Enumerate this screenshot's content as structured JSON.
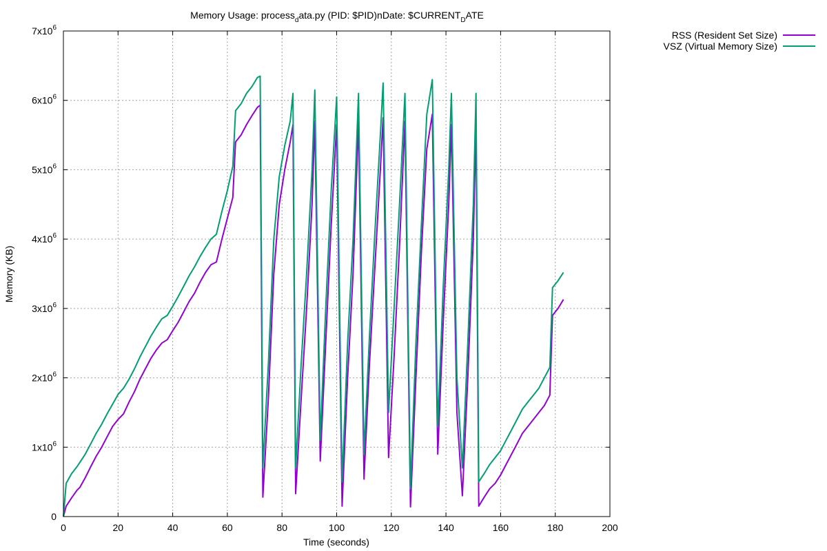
{
  "chart_data": {
    "type": "line",
    "title_parts": {
      "a": "Memory Usage: process",
      "sub1": "d",
      "b": "ata.py (PID: $PID)nDate: $CURRENT",
      "sub2": "D",
      "c": "ATE"
    },
    "xlabel": "Time (seconds)",
    "ylabel": "Memory (KB)",
    "xlim": [
      0,
      200
    ],
    "ylim": [
      0,
      7000000
    ],
    "grid": true,
    "legend_position": "outside top-right",
    "x_ticks": [
      {
        "value": 0,
        "label": "0"
      },
      {
        "value": 20,
        "label": "20"
      },
      {
        "value": 40,
        "label": "40"
      },
      {
        "value": 60,
        "label": "60"
      },
      {
        "value": 80,
        "label": "80"
      },
      {
        "value": 100,
        "label": "100"
      },
      {
        "value": 120,
        "label": "120"
      },
      {
        "value": 140,
        "label": "140"
      },
      {
        "value": 160,
        "label": "160"
      },
      {
        "value": 180,
        "label": "180"
      },
      {
        "value": 200,
        "label": "200"
      }
    ],
    "y_ticks": [
      {
        "value": 0,
        "label": "0",
        "exp": ""
      },
      {
        "value": 1000000,
        "label": "1x10",
        "exp": "6"
      },
      {
        "value": 2000000,
        "label": "2x10",
        "exp": "6"
      },
      {
        "value": 3000000,
        "label": "3x10",
        "exp": "6"
      },
      {
        "value": 4000000,
        "label": "4x10",
        "exp": "6"
      },
      {
        "value": 5000000,
        "label": "5x10",
        "exp": "6"
      },
      {
        "value": 6000000,
        "label": "6x10",
        "exp": "6"
      },
      {
        "value": 7000000,
        "label": "7x10",
        "exp": "6"
      }
    ],
    "series": [
      {
        "name": "RSS (Resident Set Size)",
        "color": "#9400d3",
        "points": [
          [
            0,
            0
          ],
          [
            1,
            150000
          ],
          [
            3,
            270000
          ],
          [
            5,
            380000
          ],
          [
            6,
            420000
          ],
          [
            8,
            560000
          ],
          [
            10,
            720000
          ],
          [
            12,
            870000
          ],
          [
            14,
            1000000
          ],
          [
            16,
            1150000
          ],
          [
            18,
            1300000
          ],
          [
            20,
            1400000
          ],
          [
            22,
            1480000
          ],
          [
            24,
            1650000
          ],
          [
            26,
            1800000
          ],
          [
            28,
            1980000
          ],
          [
            30,
            2130000
          ],
          [
            32,
            2280000
          ],
          [
            34,
            2400000
          ],
          [
            36,
            2500000
          ],
          [
            38,
            2550000
          ],
          [
            40,
            2680000
          ],
          [
            42,
            2800000
          ],
          [
            44,
            2950000
          ],
          [
            46,
            3100000
          ],
          [
            48,
            3220000
          ],
          [
            50,
            3380000
          ],
          [
            52,
            3520000
          ],
          [
            54,
            3630000
          ],
          [
            56,
            3670000
          ],
          [
            58,
            4000000
          ],
          [
            60,
            4300000
          ],
          [
            62,
            4600000
          ],
          [
            63,
            5400000
          ],
          [
            65,
            5500000
          ],
          [
            67,
            5650000
          ],
          [
            69,
            5780000
          ],
          [
            71,
            5900000
          ],
          [
            72,
            5930000
          ],
          [
            73,
            280000
          ],
          [
            75,
            1700000
          ],
          [
            77,
            3500000
          ],
          [
            79,
            4500000
          ],
          [
            81,
            5000000
          ],
          [
            83,
            5400000
          ],
          [
            84,
            5650000
          ],
          [
            85,
            330000
          ],
          [
            87,
            1700000
          ],
          [
            89,
            3000000
          ],
          [
            91,
            4500000
          ],
          [
            92,
            5700000
          ],
          [
            94,
            800000
          ],
          [
            96,
            2500000
          ],
          [
            98,
            4200000
          ],
          [
            100,
            5650000
          ],
          [
            102,
            150000
          ],
          [
            104,
            2000000
          ],
          [
            106,
            3500000
          ],
          [
            108,
            5700000
          ],
          [
            110,
            540000
          ],
          [
            112,
            2200000
          ],
          [
            114,
            3600000
          ],
          [
            116,
            5000000
          ],
          [
            117,
            5750000
          ],
          [
            119,
            850000
          ],
          [
            121,
            2300000
          ],
          [
            123,
            3900000
          ],
          [
            125,
            5700000
          ],
          [
            127,
            140000
          ],
          [
            129,
            2000000
          ],
          [
            131,
            3800000
          ],
          [
            133,
            5300000
          ],
          [
            135,
            5800000
          ],
          [
            137,
            900000
          ],
          [
            139,
            2800000
          ],
          [
            141,
            4500000
          ],
          [
            142,
            5650000
          ],
          [
            144,
            1500000
          ],
          [
            146,
            300000
          ],
          [
            148,
            2000000
          ],
          [
            150,
            4000000
          ],
          [
            151,
            5650000
          ],
          [
            152,
            150000
          ],
          [
            154,
            280000
          ],
          [
            156,
            400000
          ],
          [
            158,
            480000
          ],
          [
            160,
            600000
          ],
          [
            162,
            750000
          ],
          [
            164,
            900000
          ],
          [
            166,
            1050000
          ],
          [
            168,
            1200000
          ],
          [
            170,
            1300000
          ],
          [
            172,
            1400000
          ],
          [
            174,
            1500000
          ],
          [
            176,
            1600000
          ],
          [
            178,
            1750000
          ],
          [
            179,
            2900000
          ],
          [
            181,
            3000000
          ],
          [
            183,
            3130000
          ]
        ]
      },
      {
        "name": "VSZ (Virtual Memory Size)",
        "color": "#009e73",
        "points": [
          [
            0,
            0
          ],
          [
            1,
            480000
          ],
          [
            3,
            620000
          ],
          [
            5,
            720000
          ],
          [
            6,
            780000
          ],
          [
            8,
            900000
          ],
          [
            10,
            1050000
          ],
          [
            12,
            1200000
          ],
          [
            14,
            1330000
          ],
          [
            16,
            1480000
          ],
          [
            18,
            1620000
          ],
          [
            20,
            1760000
          ],
          [
            22,
            1850000
          ],
          [
            24,
            1980000
          ],
          [
            26,
            2130000
          ],
          [
            28,
            2300000
          ],
          [
            30,
            2450000
          ],
          [
            32,
            2600000
          ],
          [
            34,
            2730000
          ],
          [
            36,
            2850000
          ],
          [
            38,
            2900000
          ],
          [
            40,
            3030000
          ],
          [
            42,
            3170000
          ],
          [
            44,
            3320000
          ],
          [
            46,
            3470000
          ],
          [
            48,
            3600000
          ],
          [
            50,
            3750000
          ],
          [
            52,
            3880000
          ],
          [
            54,
            4000000
          ],
          [
            56,
            4070000
          ],
          [
            58,
            4400000
          ],
          [
            60,
            4700000
          ],
          [
            62,
            5050000
          ],
          [
            63,
            5850000
          ],
          [
            65,
            5950000
          ],
          [
            67,
            6100000
          ],
          [
            69,
            6200000
          ],
          [
            71,
            6330000
          ],
          [
            72,
            6350000
          ],
          [
            73,
            700000
          ],
          [
            75,
            2200000
          ],
          [
            77,
            4000000
          ],
          [
            79,
            4900000
          ],
          [
            81,
            5350000
          ],
          [
            83,
            5700000
          ],
          [
            84,
            6100000
          ],
          [
            85,
            700000
          ],
          [
            87,
            2200000
          ],
          [
            89,
            3500000
          ],
          [
            91,
            5000000
          ],
          [
            92,
            6150000
          ],
          [
            94,
            1100000
          ],
          [
            96,
            3000000
          ],
          [
            98,
            4700000
          ],
          [
            100,
            6050000
          ],
          [
            102,
            500000
          ],
          [
            104,
            2500000
          ],
          [
            106,
            4000000
          ],
          [
            108,
            6100000
          ],
          [
            110,
            900000
          ],
          [
            112,
            2600000
          ],
          [
            114,
            4100000
          ],
          [
            116,
            5500000
          ],
          [
            117,
            6250000
          ],
          [
            119,
            1500000
          ],
          [
            121,
            3000000
          ],
          [
            123,
            4500000
          ],
          [
            125,
            6100000
          ],
          [
            127,
            400000
          ],
          [
            129,
            2500000
          ],
          [
            131,
            4200000
          ],
          [
            133,
            5800000
          ],
          [
            135,
            6300000
          ],
          [
            137,
            1300000
          ],
          [
            139,
            3300000
          ],
          [
            141,
            5000000
          ],
          [
            142,
            6100000
          ],
          [
            144,
            2000000
          ],
          [
            146,
            700000
          ],
          [
            148,
            2500000
          ],
          [
            150,
            4500000
          ],
          [
            151,
            6100000
          ],
          [
            152,
            500000
          ],
          [
            154,
            620000
          ],
          [
            156,
            750000
          ],
          [
            158,
            850000
          ],
          [
            160,
            950000
          ],
          [
            162,
            1100000
          ],
          [
            164,
            1250000
          ],
          [
            166,
            1400000
          ],
          [
            168,
            1550000
          ],
          [
            170,
            1650000
          ],
          [
            172,
            1750000
          ],
          [
            174,
            1850000
          ],
          [
            176,
            2000000
          ],
          [
            178,
            2150000
          ],
          [
            179,
            3300000
          ],
          [
            181,
            3400000
          ],
          [
            183,
            3520000
          ]
        ]
      }
    ]
  }
}
